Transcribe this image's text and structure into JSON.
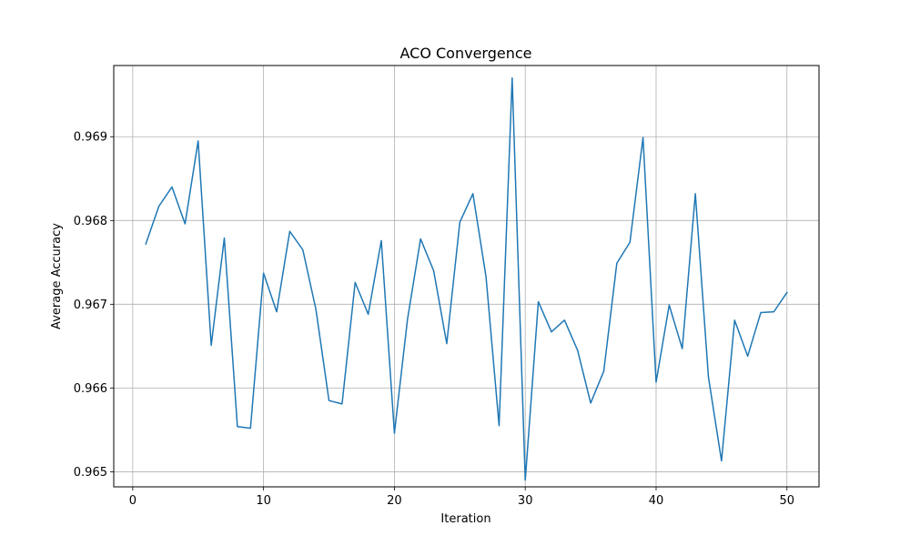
{
  "chart_data": {
    "type": "line",
    "title": "ACO Convergence",
    "xlabel": "Iteration",
    "ylabel": "Average Accuracy",
    "xlim": [
      -1.45,
      52.45
    ],
    "ylim": [
      0.96482,
      0.96985
    ],
    "xticks": [
      0,
      10,
      20,
      30,
      40,
      50
    ],
    "yticks": [
      0.965,
      0.966,
      0.967,
      0.968,
      0.969
    ],
    "ytick_labels": [
      "0.965",
      "0.966",
      "0.967",
      "0.968",
      "0.969"
    ],
    "grid": true,
    "colors": {
      "line": "#1f77b4",
      "grid": "#b0b0b0",
      "axes": "#000000"
    },
    "series": [
      {
        "x": [
          1,
          2,
          3,
          4,
          5,
          6,
          7,
          8,
          9,
          10,
          11,
          12,
          13,
          14,
          15,
          16,
          17,
          18,
          19,
          20,
          21,
          22,
          23,
          24,
          25,
          26,
          27,
          28,
          29,
          30,
          31,
          32,
          33,
          34,
          35,
          36,
          37,
          38,
          39,
          40,
          41,
          42,
          43,
          44,
          45,
          46,
          47,
          48,
          49,
          50
        ],
        "y": [
          0.96772,
          0.96817,
          0.9684,
          0.96796,
          0.96895,
          0.96651,
          0.96779,
          0.96554,
          0.96552,
          0.96737,
          0.96691,
          0.96787,
          0.96765,
          0.96694,
          0.96585,
          0.96581,
          0.96726,
          0.96688,
          0.96776,
          0.96546,
          0.96682,
          0.96778,
          0.9674,
          0.96653,
          0.96798,
          0.96832,
          0.96733,
          0.96555,
          0.9697,
          0.9649,
          0.96703,
          0.96667,
          0.96681,
          0.96645,
          0.96582,
          0.9662,
          0.96749,
          0.96774,
          0.96899,
          0.96607,
          0.96699,
          0.96647,
          0.96832,
          0.96613,
          0.96513,
          0.96681,
          0.96638,
          0.9669,
          0.96691,
          0.96714
        ]
      }
    ]
  }
}
